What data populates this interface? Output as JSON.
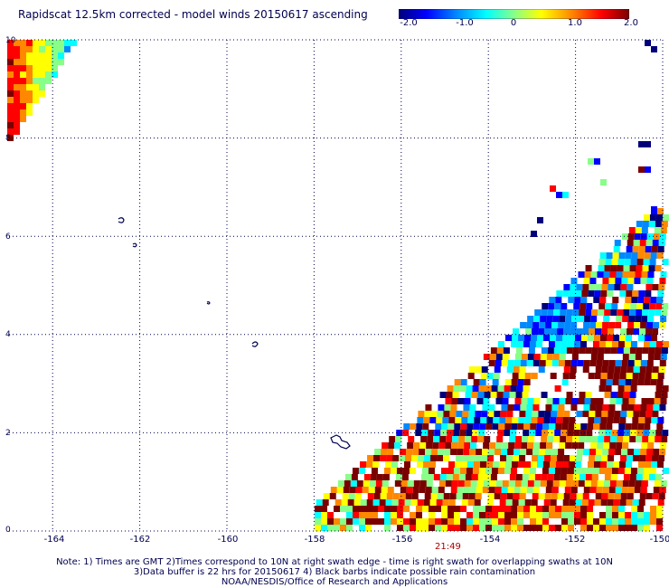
{
  "title": "Rapidscat 12.5km corrected - model winds 20150617 ascending",
  "colorbar": {
    "labels": [
      "-2.0",
      "-1.0",
      "0",
      "1.0",
      "2.0"
    ],
    "range": [
      -2.0,
      2.0
    ],
    "colors": [
      "#00007a",
      "#0000ff",
      "#0088ff",
      "#00ffff",
      "#88ff88",
      "#ffff00",
      "#ff8800",
      "#ff0000",
      "#7a0000"
    ]
  },
  "axes": {
    "x_ticks": [
      "-164",
      "-162",
      "-160",
      "-158",
      "-156",
      "-154",
      "-152",
      "-150"
    ],
    "y_ticks": [
      "10",
      "8",
      "6",
      "4",
      "2",
      "0"
    ],
    "x_range": [
      -165,
      -150
    ],
    "y_range": [
      0,
      10
    ],
    "grid": "dotted"
  },
  "timestamp": "21:49",
  "notes": {
    "line1": "Note: 1) Times are GMT 2)Times correspond to 10N at right swath edge - time is right swath for overlapping swaths at 10N",
    "line2": "3)Data buffer is 22 hrs for 20150617 4) Black barbs indicate possible rain contamination",
    "line3": "NOAA/NESDIS/Office of Research and Applications"
  },
  "colors": {
    "text": "#00004f",
    "timestamp": "#b00000",
    "grid": "#00004f",
    "coastline": "#00004f"
  }
}
